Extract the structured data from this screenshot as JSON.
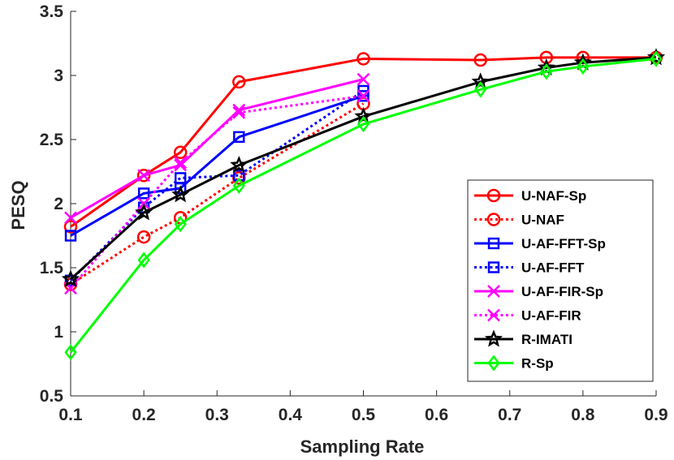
{
  "chart_data": {
    "type": "line",
    "title": "",
    "xlabel": "Sampling Rate",
    "ylabel": "PESQ",
    "xlim": [
      0.1,
      0.9
    ],
    "ylim": [
      0.5,
      3.5
    ],
    "xticks": [
      0.1,
      0.2,
      0.3,
      0.4,
      0.5,
      0.6,
      0.7,
      0.8,
      0.9
    ],
    "xtick_labels": [
      "0.1",
      "0.2",
      "0.3",
      "0.4",
      "0.5",
      "0.6",
      "0.7",
      "0.8",
      "0.9"
    ],
    "yticks": [
      0.5,
      1,
      1.5,
      2,
      2.5,
      3,
      3.5
    ],
    "ytick_labels": [
      "0.5",
      "1",
      "1.5",
      "2",
      "2.5",
      "3",
      "3.5"
    ],
    "grid": false,
    "legend_position": "right",
    "series": [
      {
        "name": "U-NAF-Sp",
        "color": "#ff0000",
        "dash": "solid",
        "marker": "circle",
        "x": [
          0.1,
          0.2,
          0.25,
          0.33,
          0.5,
          0.66,
          0.75,
          0.8,
          0.9
        ],
        "y": [
          1.82,
          2.22,
          2.4,
          2.95,
          3.13,
          3.12,
          3.14,
          3.14,
          3.14
        ]
      },
      {
        "name": "U-NAF",
        "color": "#ff0000",
        "dash": "dotted",
        "marker": "circle",
        "x": [
          0.1,
          0.2,
          0.25,
          0.33,
          0.5
        ],
        "y": [
          1.37,
          1.74,
          1.89,
          2.2,
          2.78
        ]
      },
      {
        "name": "U-AF-FFT-Sp",
        "color": "#0000ff",
        "dash": "solid",
        "marker": "square",
        "x": [
          0.1,
          0.2,
          0.25,
          0.33,
          0.5
        ],
        "y": [
          1.75,
          2.08,
          2.12,
          2.52,
          2.84
        ]
      },
      {
        "name": "U-AF-FFT",
        "color": "#0000ff",
        "dash": "dotted",
        "marker": "square",
        "x": [
          0.1,
          0.2,
          0.25,
          0.33,
          0.5
        ],
        "y": [
          1.4,
          1.97,
          2.2,
          2.22,
          2.88
        ]
      },
      {
        "name": "U-AF-FIR-Sp",
        "color": "#ff00ff",
        "dash": "solid",
        "marker": "x",
        "x": [
          0.1,
          0.2,
          0.25,
          0.33,
          0.5
        ],
        "y": [
          1.89,
          2.22,
          2.3,
          2.73,
          2.97
        ]
      },
      {
        "name": "U-AF-FIR",
        "color": "#ff00ff",
        "dash": "dotted",
        "marker": "x",
        "x": [
          0.1,
          0.2,
          0.25,
          0.33,
          0.5
        ],
        "y": [
          1.34,
          2.0,
          2.32,
          2.71,
          2.84
        ]
      },
      {
        "name": "R-IMATI",
        "color": "#000000",
        "dash": "solid",
        "marker": "star",
        "x": [
          0.1,
          0.2,
          0.25,
          0.33,
          0.5,
          0.66,
          0.75,
          0.8,
          0.9
        ],
        "y": [
          1.41,
          1.93,
          2.07,
          2.3,
          2.68,
          2.95,
          3.06,
          3.1,
          3.14
        ]
      },
      {
        "name": "R-Sp",
        "color": "#00ff00",
        "dash": "solid",
        "marker": "diamond",
        "x": [
          0.1,
          0.2,
          0.25,
          0.33,
          0.5,
          0.66,
          0.75,
          0.8,
          0.9
        ],
        "y": [
          0.84,
          1.56,
          1.84,
          2.14,
          2.62,
          2.89,
          3.03,
          3.07,
          3.13
        ]
      }
    ]
  }
}
